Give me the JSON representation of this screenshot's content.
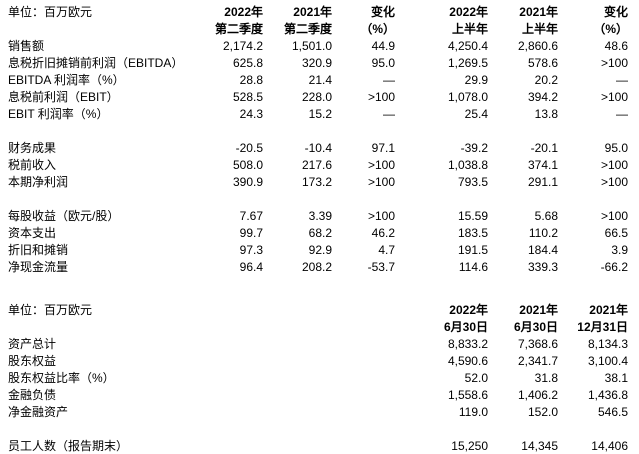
{
  "page": {
    "background_color": "#ffffff",
    "text_color": "#000000"
  },
  "table1": {
    "unit_label": "单位：百万欧元",
    "columns": [
      {
        "line1": "2022年",
        "line2": "第二季度"
      },
      {
        "line1": "2021年",
        "line2": "第二季度"
      },
      {
        "line1": "变化",
        "line2": "（%）"
      },
      {
        "line1": "2022年",
        "line2": "上半年"
      },
      {
        "line1": "2021年",
        "line2": "上半年"
      },
      {
        "line1": "变化",
        "line2": "（%）"
      }
    ],
    "rows": [
      {
        "label": "销售额",
        "values": [
          "2,174.2",
          "1,501.0",
          "44.9",
          "4,250.4",
          "2,860.6",
          "48.6"
        ]
      },
      {
        "label": "息税折旧摊销前利润（EBITDA）",
        "values": [
          "625.8",
          "320.9",
          "95.0",
          "1,269.5",
          "578.6",
          ">100"
        ]
      },
      {
        "label": "EBITDA 利润率（%）",
        "values": [
          "28.8",
          "21.4",
          "—",
          "29.9",
          "20.2",
          "—"
        ]
      },
      {
        "label": "息税前利润（EBIT）",
        "values": [
          "528.5",
          "228.0",
          ">100",
          "1,078.0",
          "394.2",
          ">100"
        ]
      },
      {
        "label": "EBIT 利润率（%）",
        "values": [
          "24.3",
          "15.2",
          "—",
          "25.4",
          "13.8",
          "—"
        ]
      },
      {
        "spacer": true
      },
      {
        "label": "财务成果",
        "values": [
          "-20.5",
          "-10.4",
          "97.1",
          "-39.2",
          "-20.1",
          "95.0"
        ]
      },
      {
        "label": "税前收入",
        "values": [
          "508.0",
          "217.6",
          ">100",
          "1,038.8",
          "374.1",
          ">100"
        ]
      },
      {
        "label": "本期净利润",
        "values": [
          "390.9",
          "173.2",
          ">100",
          "793.5",
          "291.1",
          ">100"
        ]
      },
      {
        "spacer": true
      },
      {
        "label": "每股收益（欧元/股）",
        "values": [
          "7.67",
          "3.39",
          ">100",
          "15.59",
          "5.68",
          ">100"
        ]
      },
      {
        "label": "资本支出",
        "values": [
          "99.7",
          "68.2",
          "46.2",
          "183.5",
          "110.2",
          "66.5"
        ]
      },
      {
        "label": "折旧和摊销",
        "values": [
          "97.3",
          "92.9",
          "4.7",
          "191.5",
          "184.4",
          "3.9"
        ]
      },
      {
        "label": "净现金流量",
        "values": [
          "96.4",
          "208.2",
          "-53.7",
          "114.6",
          "339.3",
          "-66.2"
        ]
      }
    ]
  },
  "table2": {
    "unit_label": "单位：百万欧元",
    "columns": [
      {
        "line1": "2022年",
        "line2": "6月30日"
      },
      {
        "line1": "2021年",
        "line2": "6月30日"
      },
      {
        "line1": "2021年",
        "line2": "12月31日"
      }
    ],
    "rows": [
      {
        "label": "资产总计",
        "values": [
          "8,833.2",
          "7,368.6",
          "8,134.3"
        ]
      },
      {
        "label": "股东权益",
        "values": [
          "4,590.6",
          "2,341.7",
          "3,100.4"
        ]
      },
      {
        "label": "股东权益比率（%）",
        "values": [
          "52.0",
          "31.8",
          "38.1"
        ]
      },
      {
        "label": "金融负债",
        "values": [
          "1,558.6",
          "1,406.2",
          "1,436.8"
        ]
      },
      {
        "label": "净金融资产",
        "values": [
          "119.0",
          "152.0",
          "546.5"
        ]
      },
      {
        "spacer": true
      },
      {
        "label": "员工人数（报告期末）",
        "values": [
          "15,250",
          "14,345",
          "14,406"
        ]
      }
    ]
  }
}
